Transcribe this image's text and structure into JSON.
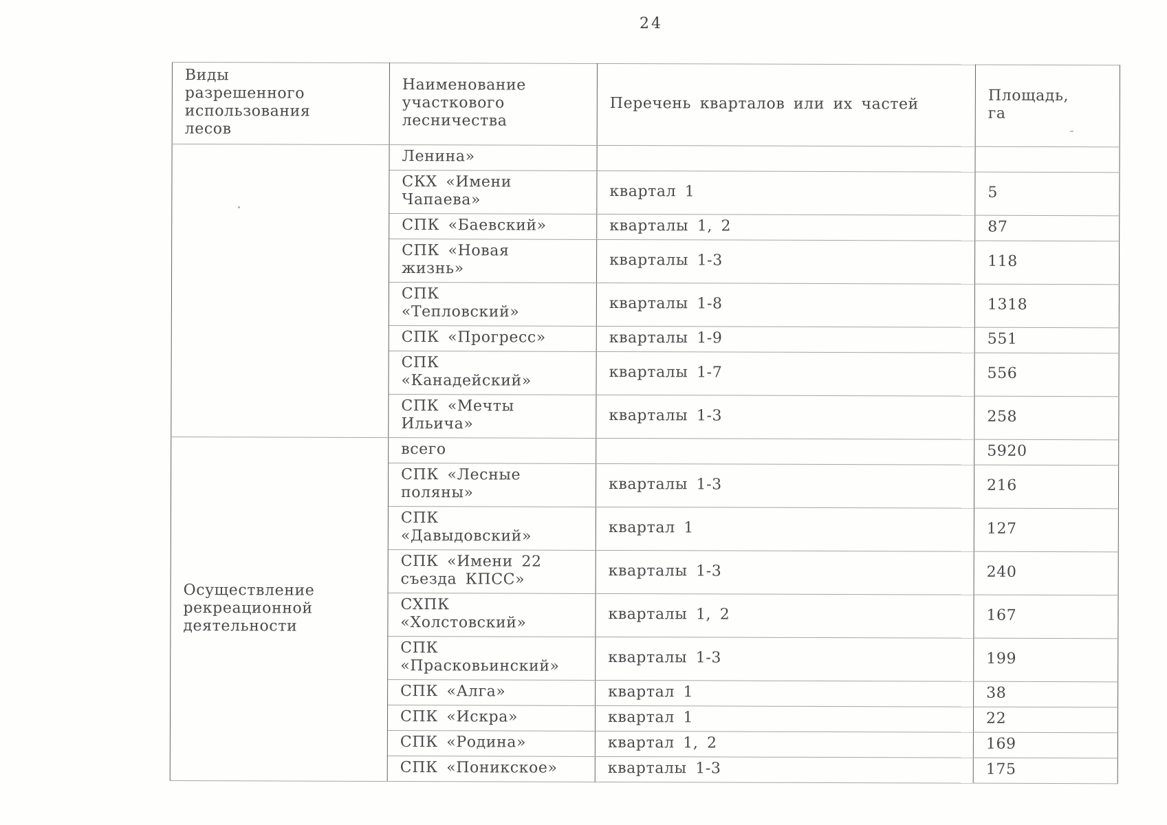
{
  "page": {
    "number": "24"
  },
  "table": {
    "col_headers": {
      "use_types": "Виды\nразрешенного\nиспользования\nлесов",
      "forestry_name": "Наименование\nучасткового\nлесничества",
      "quarters_list": "Перечень кварталов или их частей",
      "area": "Площадь,\nга"
    },
    "groups": [
      {
        "use_type": "",
        "rows": [
          {
            "name": "Ленина»",
            "quarters": "",
            "area": ""
          },
          {
            "name": "СКХ «Имени\nЧапаева»",
            "quarters": "квартал 1",
            "area": "5"
          },
          {
            "name": "СПК «Баевский»",
            "quarters": "кварталы 1, 2",
            "area": "87"
          },
          {
            "name": "СПК «Новая\nжизнь»",
            "quarters": "кварталы 1-3",
            "area": "118"
          },
          {
            "name": "СПК\n«Тепловский»",
            "quarters": "кварталы 1-8",
            "area": "1318"
          },
          {
            "name": "СПК «Прогресс»",
            "quarters": "кварталы 1-9",
            "area": "551"
          },
          {
            "name": "СПК\n«Канадейский»",
            "quarters": "кварталы 1-7",
            "area": "556"
          },
          {
            "name": "СПК «Мечты\nИльича»",
            "quarters": "кварталы 1-3",
            "area": "258"
          }
        ]
      },
      {
        "use_type": "Осуществление\nрекреационной\nдеятельности",
        "rows": [
          {
            "name": "всего",
            "quarters": "",
            "area": "5920"
          },
          {
            "name": "СПК «Лесные\nполяны»",
            "quarters": "кварталы 1-3",
            "area": "216"
          },
          {
            "name": "СПК\n«Давыдовский»",
            "quarters": "квартал 1",
            "area": "127"
          },
          {
            "name": "СПК «Имени 22\nсъезда КПСС»",
            "quarters": "кварталы 1-3",
            "area": "240"
          },
          {
            "name": "СХПК\n«Холстовский»",
            "quarters": "кварталы 1, 2",
            "area": "167"
          },
          {
            "name": "СПК\n«Прасковьинский»",
            "quarters": "кварталы 1-3",
            "area": "199"
          },
          {
            "name": "СПК «Алга»",
            "quarters": "квартал 1",
            "area": "38"
          },
          {
            "name": "СПК «Искра»",
            "quarters": "квартал 1",
            "area": "22"
          },
          {
            "name": "СПК «Родина»",
            "quarters": "квартал 1, 2",
            "area": "169"
          },
          {
            "name": "СПК «Поникское»",
            "quarters": "кварталы 1-3",
            "area": "175"
          }
        ]
      }
    ]
  }
}
